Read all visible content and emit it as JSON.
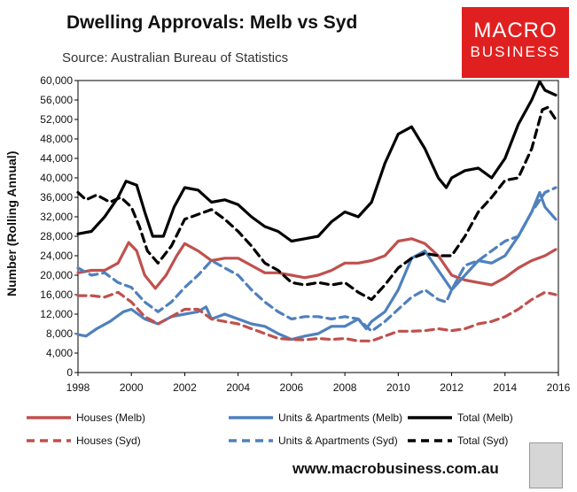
{
  "header": {
    "title": "Dwelling Approvals: Melb vs Syd",
    "subtitle": "Source: Australian Bureau of Statistics"
  },
  "brand": {
    "line1": "MACRO",
    "line2": "BUSINESS",
    "color": "#e02020"
  },
  "footer": {
    "url": "www.macrobusiness.com.au"
  },
  "chart_data": {
    "type": "line",
    "title": "Dwelling Approvals: Melb vs Syd",
    "xlabel": "",
    "ylabel": "Number (Rolling Annual)",
    "xlim": [
      1998,
      2016
    ],
    "ylim": [
      0,
      60000
    ],
    "x_ticks": [
      1998,
      2000,
      2002,
      2004,
      2006,
      2008,
      2010,
      2012,
      2014,
      2016
    ],
    "y_ticks": [
      0,
      4000,
      8000,
      12000,
      16000,
      20000,
      24000,
      28000,
      32000,
      36000,
      40000,
      44000,
      48000,
      52000,
      56000,
      60000
    ],
    "y_tick_labels": [
      "0",
      "4,000",
      "8,000",
      "12,000",
      "16,000",
      "20,000",
      "24,000",
      "28,000",
      "32,000",
      "36,000",
      "40,000",
      "44,000",
      "48,000",
      "52,000",
      "56,000",
      "60,000"
    ],
    "grid": false,
    "legend_position": "bottom",
    "series": [
      {
        "name": "Houses (Melb)",
        "color": "#c0504d",
        "dash": "solid",
        "points": [
          [
            1998,
            20500
          ],
          [
            1998.5,
            21000
          ],
          [
            1999,
            21000
          ],
          [
            1999.5,
            22500
          ],
          [
            1999.9,
            26700
          ],
          [
            2000.2,
            25000
          ],
          [
            2000.5,
            20000
          ],
          [
            2000.9,
            17300
          ],
          [
            2001.3,
            20000
          ],
          [
            2001.7,
            24000
          ],
          [
            2002,
            26500
          ],
          [
            2002.5,
            25000
          ],
          [
            2003,
            23000
          ],
          [
            2003.5,
            23500
          ],
          [
            2004,
            23500
          ],
          [
            2004.5,
            22000
          ],
          [
            2005,
            20500
          ],
          [
            2005.5,
            20500
          ],
          [
            2006,
            20000
          ],
          [
            2006.5,
            19500
          ],
          [
            2007,
            20000
          ],
          [
            2007.5,
            21000
          ],
          [
            2008,
            22500
          ],
          [
            2008.5,
            22500
          ],
          [
            2009,
            23000
          ],
          [
            2009.5,
            24000
          ],
          [
            2010,
            27000
          ],
          [
            2010.5,
            27500
          ],
          [
            2011,
            26500
          ],
          [
            2011.5,
            24000
          ],
          [
            2012,
            20000
          ],
          [
            2012.5,
            19000
          ],
          [
            2013,
            18500
          ],
          [
            2013.5,
            18000
          ],
          [
            2014,
            19500
          ],
          [
            2014.5,
            21500
          ],
          [
            2015,
            23000
          ],
          [
            2015.5,
            24000
          ],
          [
            2015.9,
            25300
          ]
        ]
      },
      {
        "name": "Units & Apartments (Melb)",
        "color": "#4f81bd",
        "dash": "solid",
        "points": [
          [
            1998,
            7800
          ],
          [
            1998.3,
            7500
          ],
          [
            1998.7,
            9000
          ],
          [
            1999.2,
            10500
          ],
          [
            1999.7,
            12500
          ],
          [
            2000,
            13000
          ],
          [
            2000.5,
            11000
          ],
          [
            2001,
            10000
          ],
          [
            2001.5,
            11500
          ],
          [
            2002,
            12000
          ],
          [
            2002.5,
            12500
          ],
          [
            2002.8,
            13500
          ],
          [
            2003,
            11000
          ],
          [
            2003.5,
            12000
          ],
          [
            2004,
            11000
          ],
          [
            2004.5,
            10000
          ],
          [
            2005,
            9500
          ],
          [
            2005.5,
            8000
          ],
          [
            2006,
            6800
          ],
          [
            2006.5,
            7500
          ],
          [
            2007,
            8000
          ],
          [
            2007.5,
            9500
          ],
          [
            2008,
            9500
          ],
          [
            2008.5,
            11000
          ],
          [
            2008.8,
            9000
          ],
          [
            2009,
            10500
          ],
          [
            2009.5,
            12500
          ],
          [
            2010,
            17000
          ],
          [
            2010.5,
            23500
          ],
          [
            2011,
            25000
          ],
          [
            2011.5,
            21000
          ],
          [
            2012,
            17000
          ],
          [
            2012.5,
            20000
          ],
          [
            2013,
            23000
          ],
          [
            2013.5,
            22500
          ],
          [
            2014,
            24000
          ],
          [
            2014.5,
            28000
          ],
          [
            2015,
            33000
          ],
          [
            2015.3,
            37000
          ],
          [
            2015.5,
            34000
          ],
          [
            2015.9,
            31500
          ]
        ]
      },
      {
        "name": "Total (Melb)",
        "color": "#000000",
        "dash": "solid",
        "points": [
          [
            1998,
            28500
          ],
          [
            1998.5,
            29000
          ],
          [
            1999,
            32000
          ],
          [
            1999.5,
            36000
          ],
          [
            1999.8,
            39300
          ],
          [
            2000.2,
            38500
          ],
          [
            2000.5,
            33000
          ],
          [
            2000.8,
            28000
          ],
          [
            2001.2,
            28000
          ],
          [
            2001.6,
            34000
          ],
          [
            2002,
            38000
          ],
          [
            2002.5,
            37500
          ],
          [
            2003,
            35000
          ],
          [
            2003.5,
            35500
          ],
          [
            2004,
            34500
          ],
          [
            2004.5,
            32000
          ],
          [
            2005,
            30000
          ],
          [
            2005.5,
            29000
          ],
          [
            2006,
            27000
          ],
          [
            2006.5,
            27500
          ],
          [
            2007,
            28000
          ],
          [
            2007.5,
            31000
          ],
          [
            2008,
            33000
          ],
          [
            2008.5,
            32000
          ],
          [
            2009,
            35000
          ],
          [
            2009.5,
            43000
          ],
          [
            2010,
            49000
          ],
          [
            2010.5,
            50500
          ],
          [
            2011,
            46000
          ],
          [
            2011.5,
            40000
          ],
          [
            2011.8,
            38000
          ],
          [
            2012,
            40000
          ],
          [
            2012.5,
            41500
          ],
          [
            2013,
            42000
          ],
          [
            2013.5,
            40000
          ],
          [
            2014,
            44000
          ],
          [
            2014.5,
            51000
          ],
          [
            2015,
            56000
          ],
          [
            2015.3,
            59800
          ],
          [
            2015.5,
            58000
          ],
          [
            2015.9,
            57000
          ]
        ]
      },
      {
        "name": "Houses (Syd)",
        "color": "#c0504d",
        "dash": "dashed",
        "points": [
          [
            1998,
            15800
          ],
          [
            1998.5,
            15800
          ],
          [
            1999,
            15500
          ],
          [
            1999.5,
            16500
          ],
          [
            2000,
            14500
          ],
          [
            2000.5,
            11500
          ],
          [
            2001,
            10000
          ],
          [
            2001.5,
            11500
          ],
          [
            2002,
            13000
          ],
          [
            2002.5,
            13000
          ],
          [
            2003,
            11000
          ],
          [
            2003.5,
            10500
          ],
          [
            2004,
            10000
          ],
          [
            2004.5,
            9000
          ],
          [
            2005,
            8000
          ],
          [
            2005.5,
            7000
          ],
          [
            2006,
            6800
          ],
          [
            2006.5,
            6700
          ],
          [
            2007,
            7000
          ],
          [
            2007.5,
            6800
          ],
          [
            2008,
            7000
          ],
          [
            2008.5,
            6500
          ],
          [
            2009,
            6500
          ],
          [
            2009.5,
            7500
          ],
          [
            2010,
            8500
          ],
          [
            2010.5,
            8500
          ],
          [
            2011,
            8600
          ],
          [
            2011.5,
            9000
          ],
          [
            2012,
            8600
          ],
          [
            2012.5,
            9000
          ],
          [
            2013,
            10000
          ],
          [
            2013.5,
            10500
          ],
          [
            2014,
            11500
          ],
          [
            2014.5,
            13000
          ],
          [
            2015,
            15000
          ],
          [
            2015.5,
            16500
          ],
          [
            2015.9,
            16000
          ]
        ]
      },
      {
        "name": "Units & Apartments (Syd)",
        "color": "#4f81bd",
        "dash": "dashed",
        "points": [
          [
            1998,
            21500
          ],
          [
            1998.5,
            20000
          ],
          [
            1999,
            20500
          ],
          [
            1999.5,
            18500
          ],
          [
            2000,
            17500
          ],
          [
            2000.5,
            14500
          ],
          [
            2001,
            12500
          ],
          [
            2001.5,
            14500
          ],
          [
            2002,
            17500
          ],
          [
            2002.5,
            20000
          ],
          [
            2003,
            23000
          ],
          [
            2003.5,
            21500
          ],
          [
            2004,
            20000
          ],
          [
            2004.5,
            17000
          ],
          [
            2005,
            14500
          ],
          [
            2005.5,
            12500
          ],
          [
            2006,
            11000
          ],
          [
            2006.5,
            11500
          ],
          [
            2007,
            11500
          ],
          [
            2007.5,
            11000
          ],
          [
            2008,
            11500
          ],
          [
            2008.5,
            11000
          ],
          [
            2009,
            8500
          ],
          [
            2009.5,
            10500
          ],
          [
            2010,
            13000
          ],
          [
            2010.5,
            15500
          ],
          [
            2011,
            17000
          ],
          [
            2011.5,
            15000
          ],
          [
            2011.8,
            14500
          ],
          [
            2012,
            17000
          ],
          [
            2012.5,
            22000
          ],
          [
            2013,
            23000
          ],
          [
            2013.5,
            25000
          ],
          [
            2014,
            27000
          ],
          [
            2014.5,
            28000
          ],
          [
            2015,
            33000
          ],
          [
            2015.5,
            37000
          ],
          [
            2015.9,
            38000
          ]
        ]
      },
      {
        "name": "Total (Syd)",
        "color": "#000000",
        "dash": "dashed",
        "points": [
          [
            1998,
            37000
          ],
          [
            1998.3,
            35500
          ],
          [
            1998.7,
            36500
          ],
          [
            1999.2,
            35000
          ],
          [
            1999.6,
            36000
          ],
          [
            2000,
            34000
          ],
          [
            2000.3,
            30000
          ],
          [
            2000.6,
            25000
          ],
          [
            2001,
            22500
          ],
          [
            2001.5,
            26000
          ],
          [
            2002,
            31500
          ],
          [
            2002.5,
            32500
          ],
          [
            2003,
            33500
          ],
          [
            2003.5,
            31500
          ],
          [
            2004,
            29000
          ],
          [
            2004.5,
            26000
          ],
          [
            2005,
            22500
          ],
          [
            2005.5,
            21000
          ],
          [
            2006,
            18500
          ],
          [
            2006.5,
            18000
          ],
          [
            2007,
            18500
          ],
          [
            2007.5,
            18000
          ],
          [
            2008,
            18500
          ],
          [
            2008.5,
            16500
          ],
          [
            2009,
            15000
          ],
          [
            2009.5,
            18000
          ],
          [
            2010,
            21500
          ],
          [
            2010.5,
            23500
          ],
          [
            2011,
            24500
          ],
          [
            2011.5,
            24000
          ],
          [
            2012,
            24000
          ],
          [
            2012.5,
            28000
          ],
          [
            2013,
            33000
          ],
          [
            2013.5,
            36000
          ],
          [
            2014,
            39500
          ],
          [
            2014.5,
            40000
          ],
          [
            2015,
            46000
          ],
          [
            2015.4,
            54000
          ],
          [
            2015.6,
            54500
          ],
          [
            2015.9,
            52000
          ]
        ]
      }
    ]
  },
  "legend": {
    "items": [
      {
        "label": "Houses (Melb)",
        "color": "#c0504d",
        "dash": "solid"
      },
      {
        "label": "Units & Apartments (Melb)",
        "color": "#4f81bd",
        "dash": "solid"
      },
      {
        "label": "Total (Melb)",
        "color": "#000000",
        "dash": "solid"
      },
      {
        "label": "Houses (Syd)",
        "color": "#c0504d",
        "dash": "dashed"
      },
      {
        "label": "Units & Apartments (Syd)",
        "color": "#4f81bd",
        "dash": "dashed"
      },
      {
        "label": "Total (Syd)",
        "color": "#000000",
        "dash": "dashed"
      }
    ]
  }
}
